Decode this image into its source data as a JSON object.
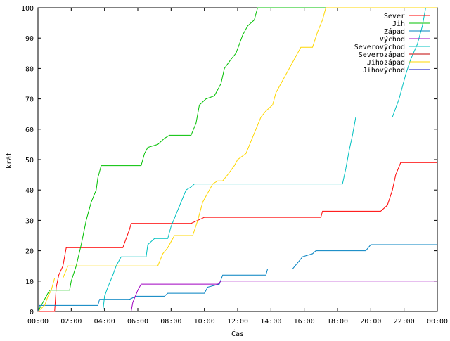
{
  "chart_data": {
    "type": "line",
    "title": "",
    "xlabel": "Čas",
    "ylabel": "krát",
    "xlim": [
      "00:00",
      "00:00"
    ],
    "x_hours_range": [
      0,
      24
    ],
    "ylim": [
      0,
      100
    ],
    "x_tick_labels": [
      "00:00",
      "02:00",
      "04:00",
      "06:00",
      "08:00",
      "10:00",
      "12:00",
      "14:00",
      "16:00",
      "18:00",
      "20:00",
      "22:00",
      "00:00"
    ],
    "y_ticks": [
      0,
      10,
      20,
      30,
      40,
      50,
      60,
      70,
      80,
      90,
      100
    ],
    "grid": false,
    "legend_position": "top-right",
    "series": [
      {
        "name": "Sever",
        "color": "#ff0000",
        "points": [
          [
            0,
            0
          ],
          [
            1.0,
            0
          ],
          [
            1.1,
            8
          ],
          [
            1.25,
            12
          ],
          [
            1.5,
            15
          ],
          [
            1.7,
            21
          ],
          [
            3.2,
            21
          ],
          [
            5.1,
            21
          ],
          [
            5.3,
            24
          ],
          [
            5.5,
            27
          ],
          [
            5.6,
            29
          ],
          [
            9.2,
            29
          ],
          [
            9.6,
            30
          ],
          [
            10.0,
            31
          ],
          [
            17.0,
            31
          ],
          [
            17.1,
            33
          ],
          [
            20.6,
            33
          ],
          [
            21.0,
            35
          ],
          [
            21.3,
            40
          ],
          [
            21.5,
            45
          ],
          [
            21.8,
            49
          ],
          [
            24,
            49
          ]
        ]
      },
      {
        "name": "Jih",
        "color": "#00c000",
        "points": [
          [
            0,
            0
          ],
          [
            0.3,
            3
          ],
          [
            0.5,
            5
          ],
          [
            0.7,
            7
          ],
          [
            1.9,
            7
          ],
          [
            2.0,
            10
          ],
          [
            2.3,
            15
          ],
          [
            2.6,
            22
          ],
          [
            2.9,
            30
          ],
          [
            3.2,
            36
          ],
          [
            3.5,
            40
          ],
          [
            3.6,
            44
          ],
          [
            3.8,
            48
          ],
          [
            6.2,
            48
          ],
          [
            6.4,
            52
          ],
          [
            6.6,
            54
          ],
          [
            7.2,
            55
          ],
          [
            7.6,
            57
          ],
          [
            7.9,
            58
          ],
          [
            9.2,
            58
          ],
          [
            9.5,
            62
          ],
          [
            9.7,
            68
          ],
          [
            10.1,
            70
          ],
          [
            10.6,
            71
          ],
          [
            11.0,
            75
          ],
          [
            11.2,
            80
          ],
          [
            11.6,
            83
          ],
          [
            11.9,
            85
          ],
          [
            12.1,
            88
          ],
          [
            12.3,
            91
          ],
          [
            12.6,
            94
          ],
          [
            13.0,
            96
          ],
          [
            13.1,
            98
          ],
          [
            13.2,
            100
          ],
          [
            24,
            100
          ]
        ]
      },
      {
        "name": "Západ",
        "color": "#0080c0",
        "points": [
          [
            0,
            0
          ],
          [
            0.1,
            2
          ],
          [
            3.6,
            2
          ],
          [
            3.7,
            4
          ],
          [
            5.5,
            4
          ],
          [
            5.9,
            5
          ],
          [
            7.6,
            5
          ],
          [
            7.8,
            6
          ],
          [
            10.0,
            6
          ],
          [
            10.2,
            8
          ],
          [
            10.9,
            9
          ],
          [
            11.1,
            12
          ],
          [
            13.7,
            12
          ],
          [
            13.8,
            14
          ],
          [
            15.3,
            14
          ],
          [
            15.6,
            16
          ],
          [
            15.9,
            18
          ],
          [
            16.5,
            19
          ],
          [
            16.7,
            20
          ],
          [
            19.7,
            20
          ],
          [
            20.0,
            22
          ],
          [
            24,
            22
          ]
        ]
      },
      {
        "name": "Východ",
        "color": "#a000c0",
        "points": [
          [
            5.6,
            0
          ],
          [
            5.7,
            3
          ],
          [
            5.85,
            5
          ],
          [
            6.0,
            7
          ],
          [
            6.2,
            9
          ],
          [
            10.8,
            9
          ],
          [
            11.0,
            10
          ],
          [
            24,
            10
          ]
        ]
      },
      {
        "name": "Severovýchod",
        "color": "#00c0c0",
        "points": [
          [
            3.9,
            0
          ],
          [
            4.0,
            5
          ],
          [
            4.2,
            8
          ],
          [
            4.5,
            12
          ],
          [
            4.7,
            15
          ],
          [
            5.0,
            18
          ],
          [
            6.5,
            18
          ],
          [
            6.6,
            22
          ],
          [
            7.0,
            24
          ],
          [
            7.8,
            24
          ],
          [
            8.0,
            28
          ],
          [
            8.3,
            32
          ],
          [
            8.6,
            36
          ],
          [
            8.9,
            40
          ],
          [
            9.2,
            41
          ],
          [
            9.4,
            42
          ],
          [
            18.3,
            42
          ],
          [
            18.5,
            47
          ],
          [
            18.7,
            53
          ],
          [
            18.9,
            58
          ],
          [
            19.1,
            64
          ],
          [
            21.3,
            64
          ],
          [
            21.7,
            70
          ],
          [
            22.1,
            78
          ],
          [
            22.4,
            83
          ],
          [
            22.8,
            88
          ],
          [
            23.1,
            94
          ],
          [
            23.3,
            100
          ],
          [
            24,
            100
          ]
        ]
      },
      {
        "name": "Severozápad",
        "color": "#c00000",
        "points": []
      },
      {
        "name": "Jihozápad",
        "color": "#ffd700",
        "points": [
          [
            0,
            0
          ],
          [
            0.4,
            2
          ],
          [
            0.6,
            5
          ],
          [
            0.8,
            7
          ],
          [
            1.0,
            11
          ],
          [
            1.5,
            11
          ],
          [
            1.8,
            15
          ],
          [
            7.2,
            15
          ],
          [
            7.5,
            19
          ],
          [
            7.8,
            21
          ],
          [
            8.2,
            25
          ],
          [
            9.3,
            25
          ],
          [
            9.6,
            30
          ],
          [
            9.9,
            36
          ],
          [
            10.2,
            39
          ],
          [
            10.5,
            42
          ],
          [
            10.8,
            43
          ],
          [
            11.1,
            43
          ],
          [
            11.4,
            45
          ],
          [
            11.8,
            48
          ],
          [
            12.0,
            50
          ],
          [
            12.5,
            52
          ],
          [
            12.8,
            56
          ],
          [
            13.1,
            60
          ],
          [
            13.4,
            64
          ],
          [
            13.7,
            66
          ],
          [
            14.1,
            68
          ],
          [
            14.3,
            72
          ],
          [
            14.6,
            75
          ],
          [
            14.9,
            78
          ],
          [
            15.1,
            80
          ],
          [
            15.4,
            83
          ],
          [
            15.8,
            87
          ],
          [
            16.5,
            87
          ],
          [
            16.8,
            92
          ],
          [
            17.1,
            96
          ],
          [
            17.3,
            100
          ],
          [
            24,
            100
          ]
        ]
      },
      {
        "name": "Jihovýchod",
        "color": "#0000c0",
        "points": []
      }
    ]
  }
}
